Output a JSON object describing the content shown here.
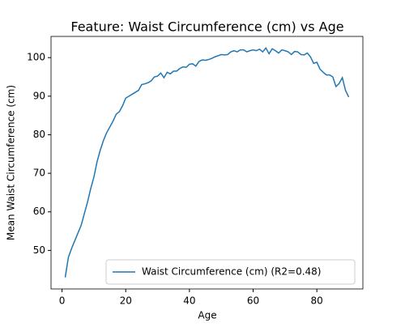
{
  "chart_data": {
    "type": "line",
    "title": "Feature: Waist Circumference (cm) vs Age",
    "xlabel": "Age",
    "ylabel": "Mean Waist Circumference (cm)",
    "x": [
      1,
      2,
      3,
      4,
      5,
      6,
      7,
      8,
      9,
      10,
      11,
      12,
      13,
      14,
      15,
      16,
      17,
      18,
      19,
      20,
      21,
      22,
      23,
      24,
      25,
      26,
      27,
      28,
      29,
      30,
      31,
      32,
      33,
      34,
      35,
      36,
      37,
      38,
      39,
      40,
      41,
      42,
      43,
      44,
      45,
      46,
      47,
      48,
      49,
      50,
      51,
      52,
      53,
      54,
      55,
      56,
      57,
      58,
      59,
      60,
      61,
      62,
      63,
      64,
      65,
      66,
      67,
      68,
      69,
      70,
      71,
      72,
      73,
      74,
      75,
      76,
      77,
      78,
      79,
      80,
      81,
      82,
      83,
      84,
      85,
      86,
      87,
      88,
      89,
      90
    ],
    "series": [
      {
        "name": "Waist Circumference (cm) (R2=0.48)",
        "color": "#1f77b4",
        "values": [
          43,
          48.2,
          50.5,
          52.5,
          54.5,
          56.5,
          59.5,
          62.5,
          66,
          69,
          73,
          76,
          78.5,
          80.5,
          82,
          83.5,
          85.3,
          86,
          87.5,
          89.5,
          90,
          90.5,
          91,
          91.5,
          93,
          93.2,
          93.5,
          94,
          95,
          95.2,
          96,
          94.8,
          96.2,
          95.8,
          96.5,
          96.5,
          97.2,
          97.6,
          97.5,
          98.3,
          98.4,
          97.8,
          99,
          99.4,
          99.3,
          99.5,
          99.8,
          100.2,
          100.5,
          100.8,
          100.7,
          100.8,
          101.5,
          101.8,
          101.5,
          102,
          102,
          101.5,
          101.8,
          102,
          101.8,
          102.2,
          101.5,
          102.5,
          101,
          102.3,
          101.8,
          101.2,
          102,
          101.8,
          101.5,
          100.8,
          101.6,
          101.5,
          100.8,
          100.7,
          101.2,
          100.2,
          98.5,
          98.8,
          97,
          96.2,
          95.5,
          95.5,
          95,
          92.5,
          93.3,
          94.8,
          91.5,
          89.8
        ]
      }
    ],
    "xlim": [
      -3.45,
      94.45
    ],
    "ylim": [
      40,
      105.5
    ],
    "xticks": [
      0,
      20,
      40,
      60,
      80
    ],
    "yticks": [
      50,
      60,
      70,
      80,
      90,
      100
    ],
    "legend": "lower right",
    "grid": false
  }
}
